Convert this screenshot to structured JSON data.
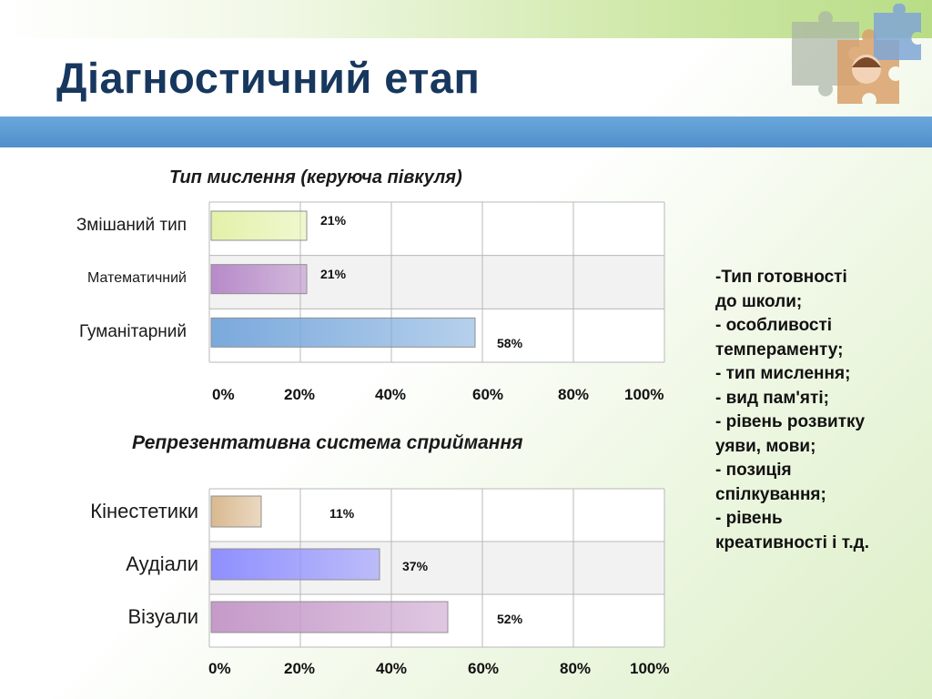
{
  "slide": {
    "title": "Діагностичний етап"
  },
  "chart_data": [
    {
      "type": "bar",
      "orientation": "horizontal",
      "title": "Тип мислення (керуюча півкуля)",
      "categories": [
        "Змішаний тип",
        "Математичний",
        "Гуманітарний"
      ],
      "values": [
        21,
        21,
        58
      ],
      "value_labels": [
        "21%",
        "21%",
        "58%"
      ],
      "xlim": [
        0,
        100
      ],
      "x_ticks": [
        "0%",
        "20%",
        "40%",
        "60%",
        "80%",
        "100%"
      ],
      "grid": true,
      "colors": [
        "#e3f1a9",
        "#b78ac9",
        "#7aa9dc"
      ]
    },
    {
      "type": "bar",
      "orientation": "horizontal",
      "title": "Репрезентативна система сприймання",
      "categories": [
        "Кінестетики",
        "Аудіали",
        "Візуали"
      ],
      "values": [
        11,
        37,
        52
      ],
      "value_labels": [
        "11%",
        "37%",
        "52%"
      ],
      "xlim": [
        0,
        100
      ],
      "x_ticks": [
        "0%",
        "20%",
        "40%",
        "60%",
        "80%",
        "100%"
      ],
      "grid": true,
      "colors": [
        "#d9b98f",
        "#8f8fff",
        "#c59ac9"
      ]
    }
  ],
  "side_list": {
    "items": [
      "-Тип готовності",
      "до школи;",
      "- особливості",
      "темпераменту;",
      "- тип мислення;",
      "- вид пам'яті;",
      "- рівень розвитку",
      "уяви, мови;",
      "- позиція",
      "спілкування;",
      "- рівень",
      "креативності  і т.д."
    ]
  },
  "decor": {
    "puzzle_icon": "puzzle-pieces-icon"
  }
}
